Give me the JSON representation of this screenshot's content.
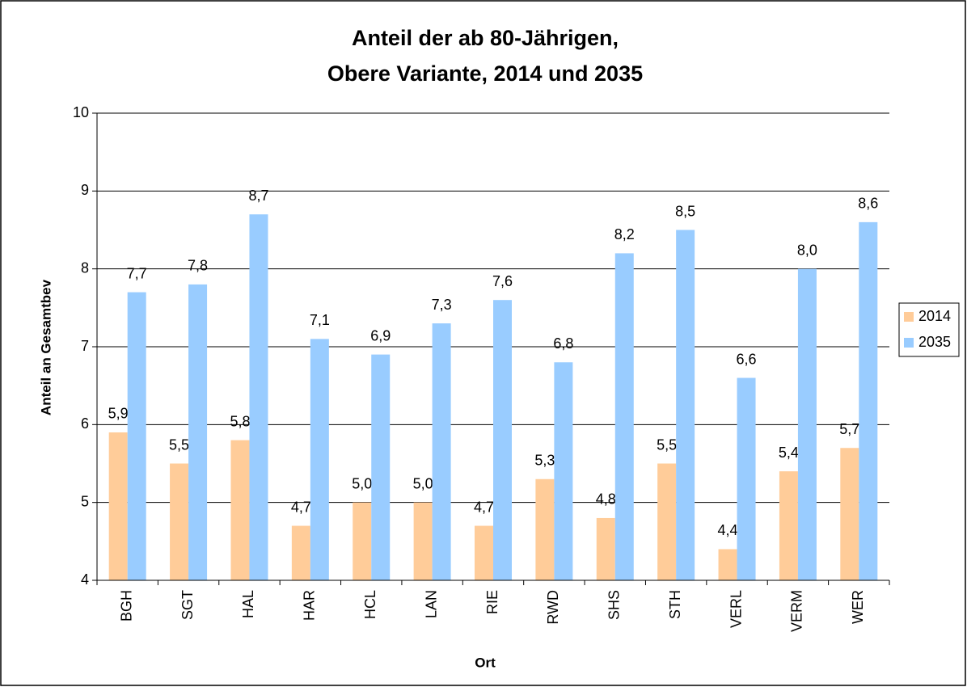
{
  "chart_data": {
    "type": "bar",
    "title": [
      "Anteil der ab 80-Jährigen,",
      "Obere Variante, 2014 und 2035"
    ],
    "x_label": "Ort",
    "y_label": "Anteil an Gesamtbev",
    "categories": [
      "BGH",
      "SGT",
      "HAL",
      "HAR",
      "HCL",
      "LAN",
      "RIE",
      "RWD",
      "SHS",
      "STH",
      "VERL",
      "VERM",
      "WER"
    ],
    "series": [
      {
        "name": "2014",
        "color": "#FFCC99",
        "values": [
          5.9,
          5.5,
          5.8,
          4.7,
          5.0,
          5.0,
          4.7,
          5.3,
          4.8,
          5.5,
          4.4,
          5.4,
          5.7
        ],
        "value_labels": [
          "5,9",
          "5,5",
          "5,8",
          "4,7",
          "5,0",
          "5,0",
          "4,7",
          "5,3",
          "4,8",
          "5,5",
          "4,4",
          "5,4",
          "5,7"
        ]
      },
      {
        "name": "2035",
        "color": "#99CCFF",
        "values": [
          7.7,
          7.8,
          8.7,
          7.1,
          6.9,
          7.3,
          7.6,
          6.8,
          8.2,
          8.5,
          6.6,
          8.0,
          8.6
        ],
        "value_labels": [
          "7,7",
          "7,8",
          "8,7",
          "7,1",
          "6,9",
          "7,3",
          "7,6",
          "6,8",
          "8,2",
          "8,5",
          "6,6",
          "8,0",
          "8,6"
        ]
      }
    ],
    "ylim": [
      4,
      10
    ],
    "yticks": [
      4,
      5,
      6,
      7,
      8,
      9,
      10
    ],
    "grid": true,
    "legend": "right"
  }
}
